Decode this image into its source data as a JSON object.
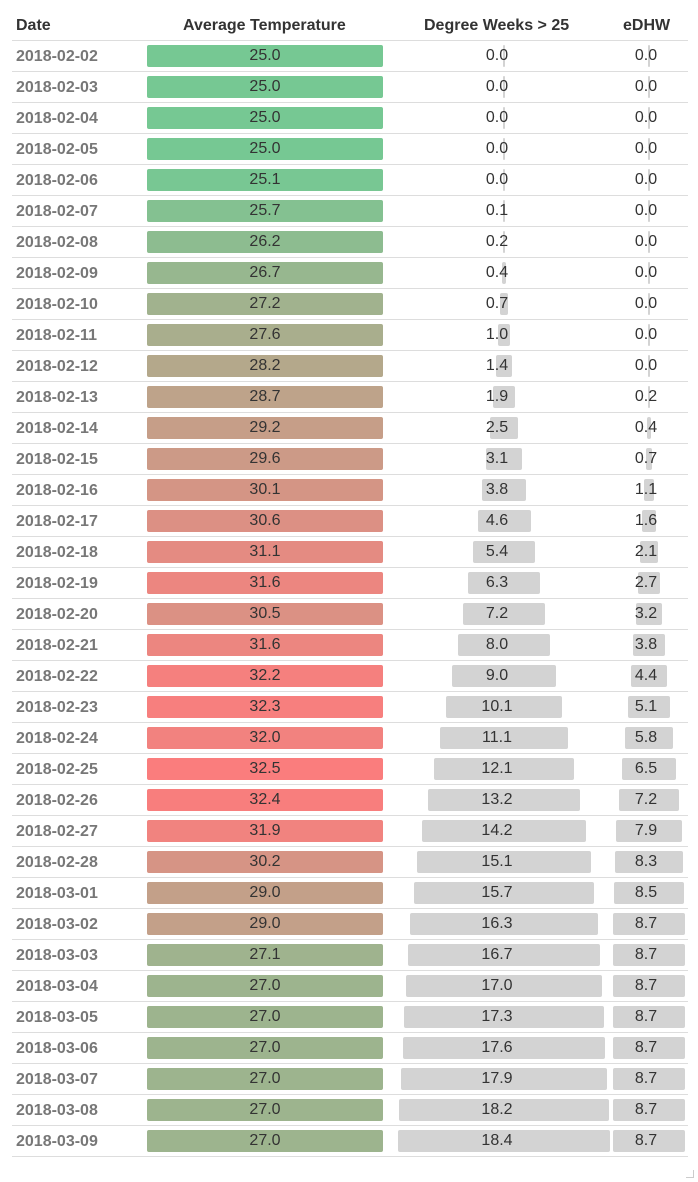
{
  "chart_data": {
    "type": "table",
    "columns": [
      "Date",
      "Average Temperature",
      "Degree Weeks > 25",
      "eDHW"
    ],
    "dw_max": 18.4,
    "edhw_max": 8.7,
    "rows": [
      {
        "date": "2018-02-02",
        "temp": "25.0",
        "dw": "0.0",
        "edhw": "0.0"
      },
      {
        "date": "2018-02-03",
        "temp": "25.0",
        "dw": "0.0",
        "edhw": "0.0"
      },
      {
        "date": "2018-02-04",
        "temp": "25.0",
        "dw": "0.0",
        "edhw": "0.0"
      },
      {
        "date": "2018-02-05",
        "temp": "25.0",
        "dw": "0.0",
        "edhw": "0.0"
      },
      {
        "date": "2018-02-06",
        "temp": "25.1",
        "dw": "0.0",
        "edhw": "0.0"
      },
      {
        "date": "2018-02-07",
        "temp": "25.7",
        "dw": "0.1",
        "edhw": "0.0"
      },
      {
        "date": "2018-02-08",
        "temp": "26.2",
        "dw": "0.2",
        "edhw": "0.0"
      },
      {
        "date": "2018-02-09",
        "temp": "26.7",
        "dw": "0.4",
        "edhw": "0.0"
      },
      {
        "date": "2018-02-10",
        "temp": "27.2",
        "dw": "0.7",
        "edhw": "0.0"
      },
      {
        "date": "2018-02-11",
        "temp": "27.6",
        "dw": "1.0",
        "edhw": "0.0"
      },
      {
        "date": "2018-02-12",
        "temp": "28.2",
        "dw": "1.4",
        "edhw": "0.0"
      },
      {
        "date": "2018-02-13",
        "temp": "28.7",
        "dw": "1.9",
        "edhw": "0.2"
      },
      {
        "date": "2018-02-14",
        "temp": "29.2",
        "dw": "2.5",
        "edhw": "0.4"
      },
      {
        "date": "2018-02-15",
        "temp": "29.6",
        "dw": "3.1",
        "edhw": "0.7"
      },
      {
        "date": "2018-02-16",
        "temp": "30.1",
        "dw": "3.8",
        "edhw": "1.1"
      },
      {
        "date": "2018-02-17",
        "temp": "30.6",
        "dw": "4.6",
        "edhw": "1.6"
      },
      {
        "date": "2018-02-18",
        "temp": "31.1",
        "dw": "5.4",
        "edhw": "2.1"
      },
      {
        "date": "2018-02-19",
        "temp": "31.6",
        "dw": "6.3",
        "edhw": "2.7"
      },
      {
        "date": "2018-02-20",
        "temp": "30.5",
        "dw": "7.2",
        "edhw": "3.2"
      },
      {
        "date": "2018-02-21",
        "temp": "31.6",
        "dw": "8.0",
        "edhw": "3.8"
      },
      {
        "date": "2018-02-22",
        "temp": "32.2",
        "dw": "9.0",
        "edhw": "4.4"
      },
      {
        "date": "2018-02-23",
        "temp": "32.3",
        "dw": "10.1",
        "edhw": "5.1"
      },
      {
        "date": "2018-02-24",
        "temp": "32.0",
        "dw": "11.1",
        "edhw": "5.8"
      },
      {
        "date": "2018-02-25",
        "temp": "32.5",
        "dw": "12.1",
        "edhw": "6.5"
      },
      {
        "date": "2018-02-26",
        "temp": "32.4",
        "dw": "13.2",
        "edhw": "7.2"
      },
      {
        "date": "2018-02-27",
        "temp": "31.9",
        "dw": "14.2",
        "edhw": "7.9"
      },
      {
        "date": "2018-02-28",
        "temp": "30.2",
        "dw": "15.1",
        "edhw": "8.3"
      },
      {
        "date": "2018-03-01",
        "temp": "29.0",
        "dw": "15.7",
        "edhw": "8.5"
      },
      {
        "date": "2018-03-02",
        "temp": "29.0",
        "dw": "16.3",
        "edhw": "8.7"
      },
      {
        "date": "2018-03-03",
        "temp": "27.1",
        "dw": "16.7",
        "edhw": "8.7"
      },
      {
        "date": "2018-03-04",
        "temp": "27.0",
        "dw": "17.0",
        "edhw": "8.7"
      },
      {
        "date": "2018-03-05",
        "temp": "27.0",
        "dw": "17.3",
        "edhw": "8.7"
      },
      {
        "date": "2018-03-06",
        "temp": "27.0",
        "dw": "17.6",
        "edhw": "8.7"
      },
      {
        "date": "2018-03-07",
        "temp": "27.0",
        "dw": "17.9",
        "edhw": "8.7"
      },
      {
        "date": "2018-03-08",
        "temp": "27.0",
        "dw": "18.2",
        "edhw": "8.7"
      },
      {
        "date": "2018-03-09",
        "temp": "27.0",
        "dw": "18.4",
        "edhw": "8.7"
      }
    ],
    "colors": {
      "temp_low": "#76c893",
      "temp_mid": "#bfa38a",
      "temp_high": "#fa7d7d",
      "bar_gray": "#d3d3d3"
    }
  }
}
